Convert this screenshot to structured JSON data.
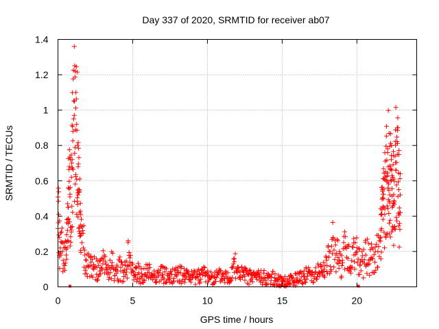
{
  "chart_data": {
    "type": "scatter",
    "title": "Day 337 of 2020, SRMTID for receiver ab07",
    "xlabel": "GPS time / hours",
    "ylabel": "SRMTID / TECUs",
    "xlim": [
      0,
      24
    ],
    "ylim": [
      0,
      1.4
    ],
    "xticks": [
      0,
      5,
      10,
      15,
      20
    ],
    "xtick_labels": [
      "0",
      "5",
      "10",
      "15",
      "20"
    ],
    "yticks": [
      0,
      0.2,
      0.4,
      0.6,
      0.8,
      1.0,
      1.2,
      1.4
    ],
    "ytick_labels": [
      "0",
      "0.2",
      "0.4",
      "0.6",
      "0.8",
      "1",
      "1.2",
      "1.4"
    ],
    "grid": true,
    "marker": "+",
    "color": "#ff0000",
    "series": [
      {
        "name": "SRMTID",
        "x": [
          0.0,
          0.05,
          0.1,
          0.15,
          0.2,
          0.25,
          0.3,
          0.35,
          0.4,
          0.45,
          0.5,
          0.55,
          0.6,
          0.7,
          0.8,
          0.9,
          0.95,
          1.0,
          1.05,
          1.1,
          1.15,
          1.2,
          1.25,
          1.3,
          1.35,
          1.4,
          1.45,
          1.5,
          1.55,
          1.6,
          1.7,
          1.8,
          1.9,
          2.0,
          2.2,
          2.4,
          2.6,
          2.8,
          3.0,
          3.2,
          3.4,
          3.6,
          3.8,
          4.0,
          4.2,
          4.4,
          4.6,
          4.7,
          4.8,
          5.0,
          5.2,
          5.4,
          5.6,
          5.8,
          6.0,
          6.5,
          7.0,
          7.5,
          8.0,
          8.5,
          9.0,
          9.5,
          10.0,
          10.5,
          11.0,
          11.5,
          11.8,
          12.0,
          12.5,
          13.0,
          13.5,
          14.0,
          14.5,
          14.8,
          15.0,
          15.2,
          15.5,
          16.0,
          16.5,
          17.0,
          17.5,
          17.8,
          18.0,
          18.2,
          18.4,
          18.6,
          18.8,
          19.0,
          19.2,
          19.4,
          19.6,
          19.8,
          20.0,
          20.2,
          20.4,
          20.6,
          20.8,
          21.0,
          21.2,
          21.4,
          21.6,
          21.8,
          22.0,
          22.1,
          22.2,
          22.3,
          22.4,
          22.5,
          22.6,
          22.7,
          22.8,
          22.9
        ],
        "y": [
          0.33,
          0.41,
          0.28,
          0.22,
          0.18,
          0.25,
          0.2,
          0.15,
          0.22,
          0.12,
          0.26,
          0.18,
          0.38,
          0.45,
          0.51,
          0.62,
          0.72,
          0.88,
          0.95,
          1.05,
          1.22,
          1.1,
          0.92,
          0.8,
          0.68,
          0.55,
          0.42,
          0.35,
          0.3,
          0.25,
          0.22,
          0.18,
          0.15,
          0.12,
          0.14,
          0.1,
          0.11,
          0.09,
          0.13,
          0.1,
          0.08,
          0.12,
          0.1,
          0.09,
          0.11,
          0.08,
          0.1,
          0.26,
          0.12,
          0.09,
          0.07,
          0.08,
          0.06,
          0.07,
          0.08,
          0.06,
          0.07,
          0.05,
          0.08,
          0.06,
          0.05,
          0.07,
          0.06,
          0.05,
          0.06,
          0.05,
          0.16,
          0.08,
          0.06,
          0.05,
          0.06,
          0.05,
          0.05,
          0.04,
          0.03,
          0.03,
          0.04,
          0.05,
          0.06,
          0.07,
          0.08,
          0.1,
          0.12,
          0.2,
          0.28,
          0.18,
          0.15,
          0.12,
          0.22,
          0.16,
          0.1,
          0.18,
          0.2,
          0.12,
          0.14,
          0.18,
          0.15,
          0.16,
          0.14,
          0.2,
          0.32,
          0.45,
          0.6,
          0.68,
          0.52,
          0.72,
          0.62,
          0.48,
          0.66,
          0.75,
          0.55,
          0.42
        ]
      }
    ],
    "zero_markers_x": [
      0.8,
      14.8,
      20.1
    ]
  }
}
